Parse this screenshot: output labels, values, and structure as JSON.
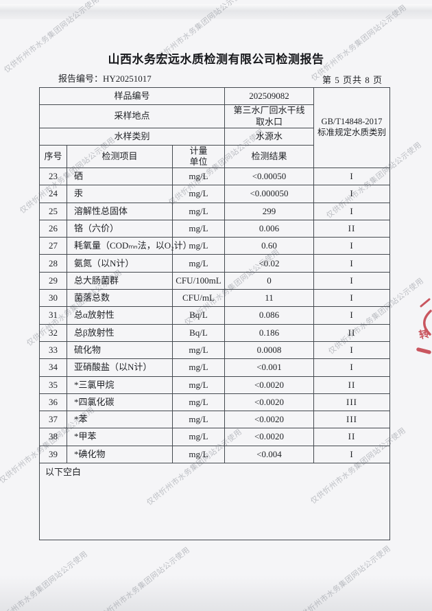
{
  "page": {
    "title": "山西水务宏远水质检测有限公司检测报告",
    "report_no_label": "报告编号：",
    "report_no": "HY20251017",
    "page_indicator": "第 5 页共 8 页",
    "below_blank_note": "以下空白"
  },
  "watermark": {
    "text": "仅供忻州市水务集团网站公示使用"
  },
  "stamp": {
    "character": "转",
    "color": "#c23b45"
  },
  "info": {
    "rows": [
      {
        "label": "样品编号",
        "value": "202509082"
      },
      {
        "label": "采样地点",
        "value": "第三水厂回水干线取水口"
      },
      {
        "label": "水样类别",
        "value": "水源水"
      }
    ],
    "standard_line1": "GB/T14848-2017",
    "standard_line2": "标准规定水质类别"
  },
  "table": {
    "headers": {
      "index": "序号",
      "item": "检测项目",
      "unit_line1": "计量",
      "unit_line2": "单位",
      "result": "检测结果"
    },
    "rows": [
      {
        "no": "23",
        "item": "硒",
        "unit": "mg/L",
        "result": "<0.00050",
        "class": "I"
      },
      {
        "no": "24",
        "item": "汞",
        "unit": "mg/L",
        "result": "<0.000050",
        "class": "I"
      },
      {
        "no": "25",
        "item": "溶解性总固体",
        "unit": "mg/L",
        "result": "299",
        "class": "I"
      },
      {
        "no": "26",
        "item": "铬（六价）",
        "unit": "mg/L",
        "result": "0.006",
        "class": "II"
      },
      {
        "no": "27",
        "item": "耗氧量（CODₘₙ法，以O₂计）",
        "unit": "mg/L",
        "result": "0.60",
        "class": "I"
      },
      {
        "no": "28",
        "item": "氨氮（以N计）",
        "unit": "mg/L",
        "result": "<0.02",
        "class": "I"
      },
      {
        "no": "29",
        "item": "总大肠菌群",
        "unit": "CFU/100mL",
        "result": "0",
        "class": "I"
      },
      {
        "no": "30",
        "item": "菌落总数",
        "unit": "CFU/mL",
        "result": "11",
        "class": "I"
      },
      {
        "no": "31",
        "item": "总α放射性",
        "unit": "Bq/L",
        "result": "0.086",
        "class": "I"
      },
      {
        "no": "32",
        "item": "总β放射性",
        "unit": "Bq/L",
        "result": "0.186",
        "class": "II"
      },
      {
        "no": "33",
        "item": "硫化物",
        "unit": "mg/L",
        "result": "0.0008",
        "class": "I"
      },
      {
        "no": "34",
        "item": "亚硝酸盐（以N计）",
        "unit": "mg/L",
        "result": "<0.001",
        "class": "I"
      },
      {
        "no": "35",
        "item": "*三氯甲烷",
        "unit": "mg/L",
        "result": "<0.0020",
        "class": "II"
      },
      {
        "no": "36",
        "item": "*四氯化碳",
        "unit": "mg/L",
        "result": "<0.0020",
        "class": "III"
      },
      {
        "no": "37",
        "item": "*苯",
        "unit": "mg/L",
        "result": "<0.0020",
        "class": "III"
      },
      {
        "no": "38",
        "item": "*甲苯",
        "unit": "mg/L",
        "result": "<0.0020",
        "class": "II"
      },
      {
        "no": "39",
        "item": "*碘化物",
        "unit": "mg/L",
        "result": "<0.004",
        "class": "I"
      }
    ]
  }
}
